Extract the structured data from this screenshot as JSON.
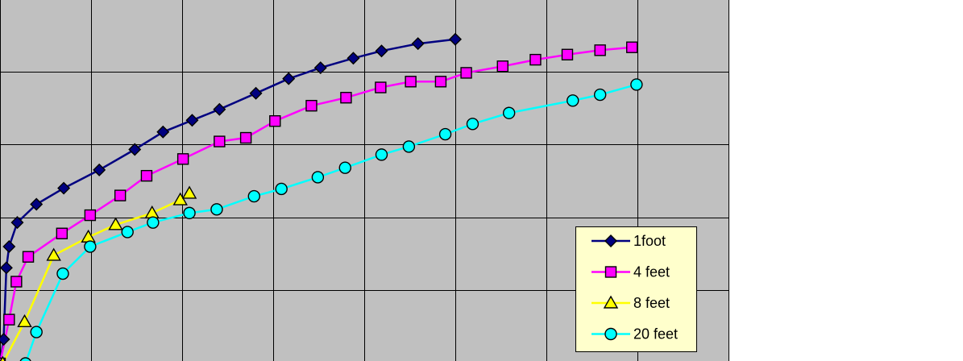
{
  "chart_data": {
    "type": "line",
    "title": "",
    "xlabel": "",
    "ylabel": "",
    "xlim": [
      0,
      8
    ],
    "ylim": [
      0,
      5
    ],
    "grid": true,
    "legend_position": "bottom-right",
    "plot_background": "#c0c0c0",
    "series": [
      {
        "name": "1foot",
        "color": "#000080",
        "marker": "diamond",
        "points": [
          [
            0.0,
            0.0
          ],
          [
            0.04,
            0.33
          ],
          [
            0.07,
            1.31
          ],
          [
            0.1,
            1.6
          ],
          [
            0.19,
            1.93
          ],
          [
            0.4,
            2.18
          ],
          [
            0.7,
            2.4
          ],
          [
            1.09,
            2.65
          ],
          [
            1.48,
            2.93
          ],
          [
            1.79,
            3.17
          ],
          [
            2.11,
            3.33
          ],
          [
            2.41,
            3.48
          ],
          [
            2.81,
            3.7
          ],
          [
            3.17,
            3.9
          ],
          [
            3.52,
            4.05
          ],
          [
            3.88,
            4.18
          ],
          [
            4.19,
            4.28
          ],
          [
            4.59,
            4.38
          ],
          [
            5.0,
            4.44
          ]
        ]
      },
      {
        "name": "4 feet",
        "color": "#ff00ff",
        "marker": "square",
        "points": [
          [
            0.0,
            0.0
          ],
          [
            0.1,
            0.6
          ],
          [
            0.18,
            1.12
          ],
          [
            0.31,
            1.46
          ],
          [
            0.68,
            1.78
          ],
          [
            0.99,
            2.03
          ],
          [
            1.32,
            2.3
          ],
          [
            1.61,
            2.57
          ],
          [
            2.01,
            2.8
          ],
          [
            2.41,
            3.04
          ],
          [
            2.7,
            3.09
          ],
          [
            3.02,
            3.32
          ],
          [
            3.42,
            3.53
          ],
          [
            3.8,
            3.64
          ],
          [
            4.18,
            3.78
          ],
          [
            4.51,
            3.86
          ],
          [
            4.84,
            3.86
          ],
          [
            5.12,
            3.98
          ],
          [
            5.52,
            4.07
          ],
          [
            5.88,
            4.16
          ],
          [
            6.23,
            4.23
          ],
          [
            6.59,
            4.29
          ],
          [
            6.94,
            4.33
          ]
        ]
      },
      {
        "name": "8 feet",
        "color": "#ffff00",
        "marker": "triangle",
        "points": [
          [
            0.03,
            0.0
          ],
          [
            0.27,
            0.57
          ],
          [
            0.59,
            1.48
          ],
          [
            0.97,
            1.73
          ],
          [
            1.27,
            1.9
          ],
          [
            1.67,
            2.06
          ],
          [
            1.98,
            2.24
          ],
          [
            2.08,
            2.33
          ]
        ]
      },
      {
        "name": "20 feet",
        "color": "#00ffff",
        "marker": "circle",
        "points": [
          [
            0.28,
            0.0
          ],
          [
            0.4,
            0.43
          ],
          [
            0.69,
            1.23
          ],
          [
            0.99,
            1.6
          ],
          [
            1.4,
            1.8
          ],
          [
            1.68,
            1.93
          ],
          [
            2.08,
            2.06
          ],
          [
            2.38,
            2.11
          ],
          [
            2.79,
            2.29
          ],
          [
            3.09,
            2.39
          ],
          [
            3.49,
            2.55
          ],
          [
            3.79,
            2.68
          ],
          [
            4.19,
            2.86
          ],
          [
            4.49,
            2.97
          ],
          [
            4.89,
            3.14
          ],
          [
            5.19,
            3.28
          ],
          [
            5.59,
            3.43
          ],
          [
            6.29,
            3.6
          ],
          [
            6.59,
            3.68
          ],
          [
            6.99,
            3.82
          ]
        ]
      }
    ]
  }
}
